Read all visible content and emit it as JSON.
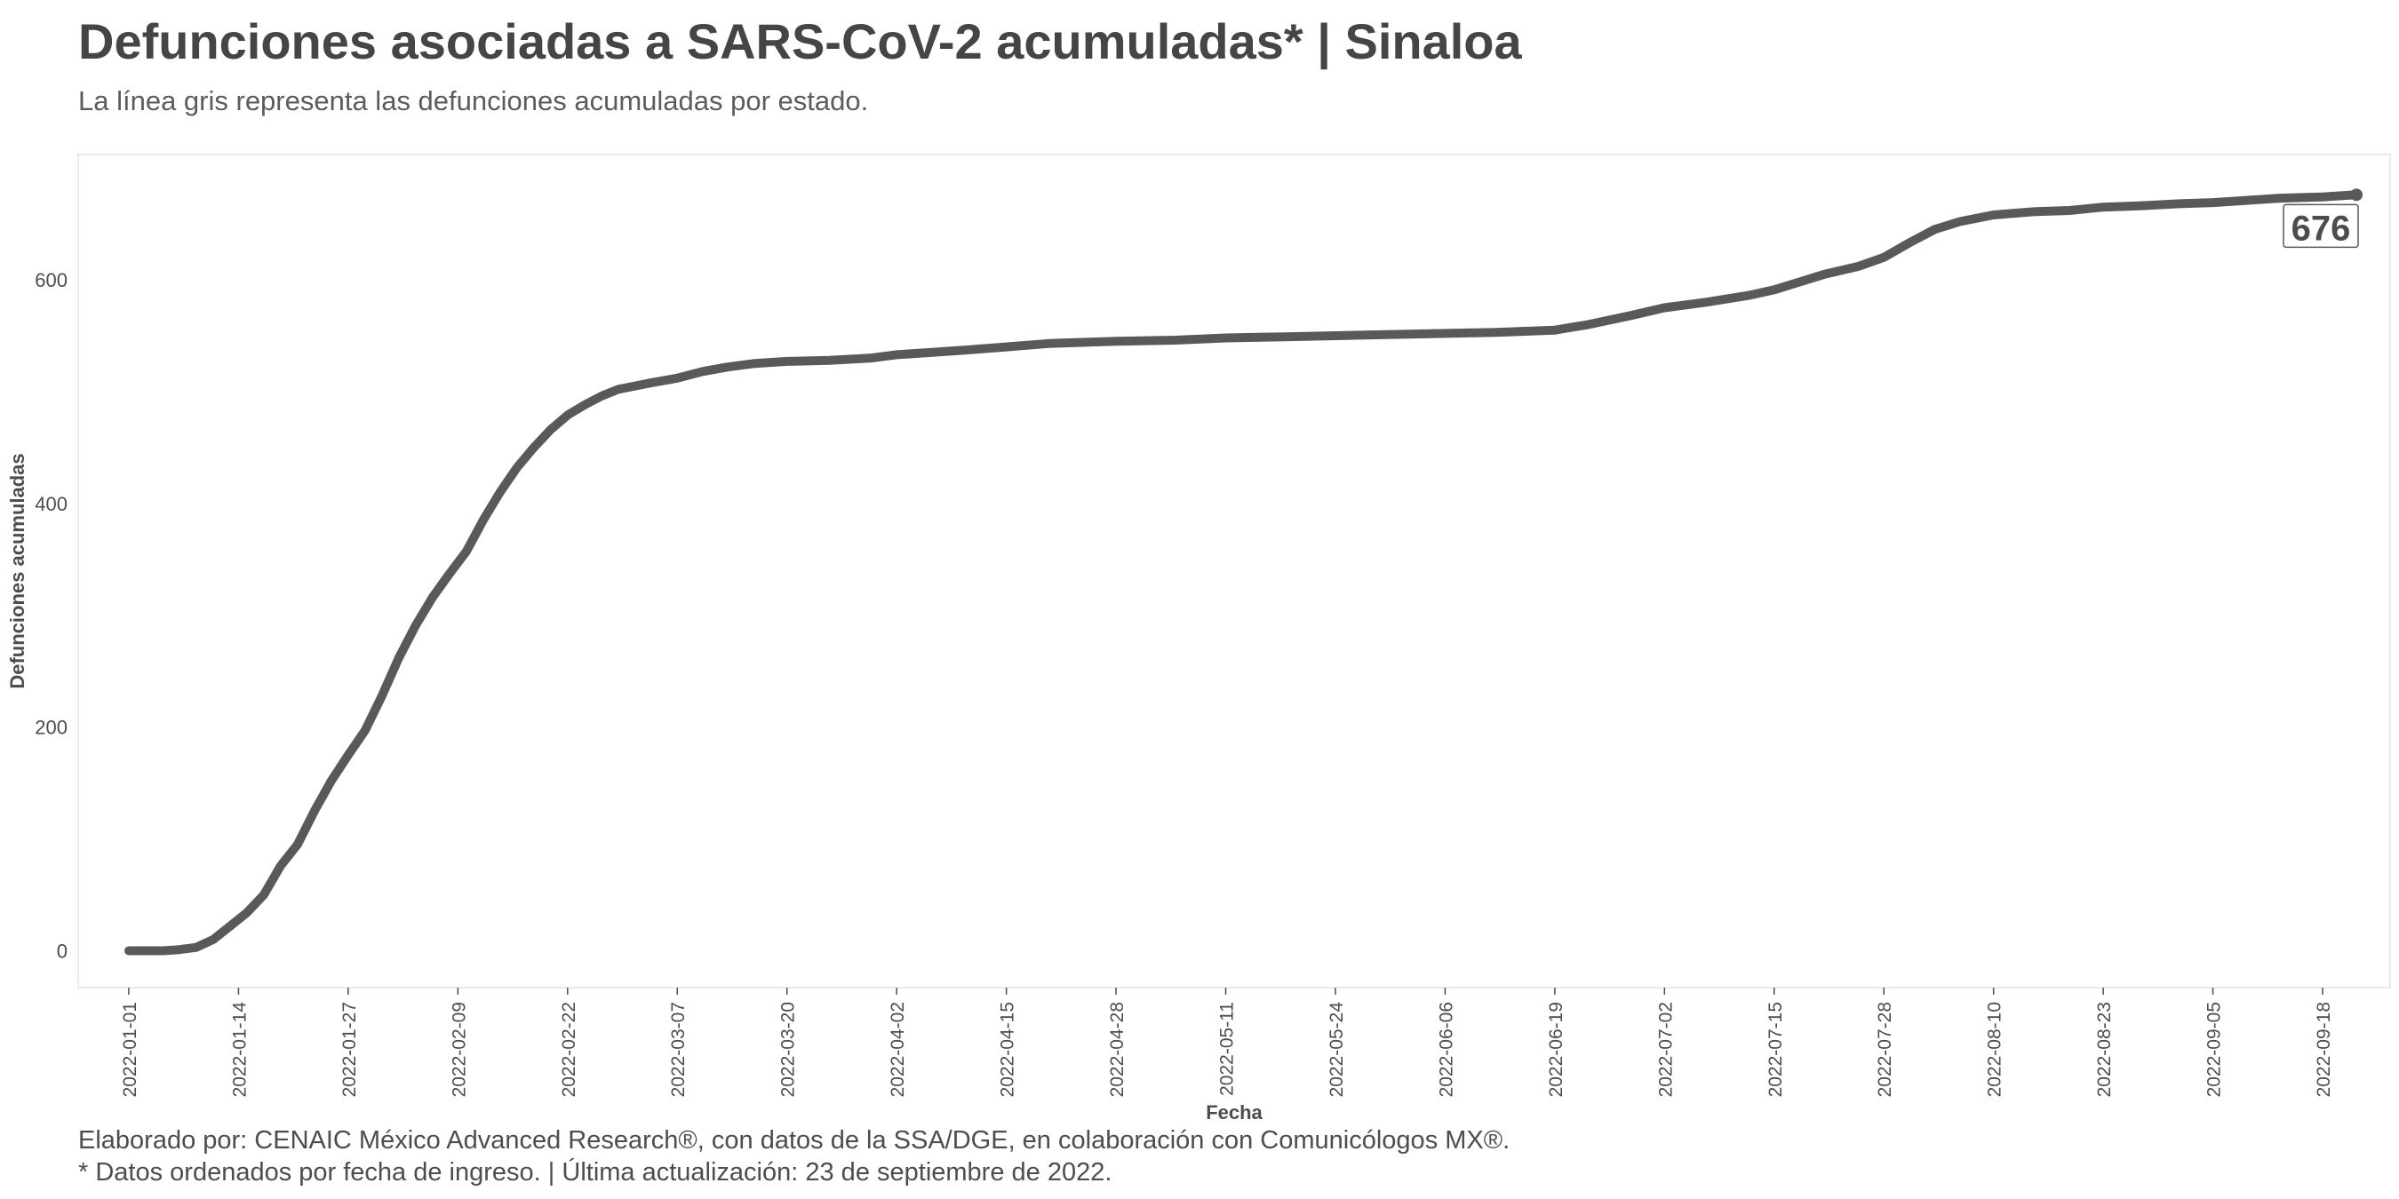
{
  "title": "Defunciones asociadas a SARS-CoV-2 acumuladas* | Sinaloa",
  "subtitle": "La línea gris representa las defunciones acumuladas por estado.",
  "caption_line1": "Elaborado por: CENAIC México Advanced Research®, con datos de la SSA/DGE, en colaboración con Comunicólogos MX®.",
  "caption_line2": "* Datos ordenados por fecha de ingreso. | Última actualización: 23 de septiembre de 2022.",
  "colors": {
    "line": "#595959",
    "frame": "#e3e3e3",
    "text": "#4d4d4d"
  },
  "chart_data": {
    "type": "line",
    "xlabel": "Fecha",
    "ylabel": "Defunciones acumuladas",
    "x_tick_labels": [
      "2022-01-01",
      "2022-01-14",
      "2022-01-27",
      "2022-02-09",
      "2022-02-22",
      "2022-03-07",
      "2022-03-20",
      "2022-04-02",
      "2022-04-15",
      "2022-04-28",
      "2022-05-11",
      "2022-05-24",
      "2022-06-06",
      "2022-06-19",
      "2022-07-02",
      "2022-07-15",
      "2022-07-28",
      "2022-08-10",
      "2022-08-23",
      "2022-09-05",
      "2022-09-18"
    ],
    "y_ticks": [
      0,
      200,
      400,
      600
    ],
    "xlim": [
      "2021-12-26",
      "2022-09-26"
    ],
    "ylim": [
      -33,
      712
    ],
    "grid": false,
    "end_label": "676",
    "series": [
      {
        "x": [
          "2022-01-01",
          "2022-01-05",
          "2022-01-07",
          "2022-01-09",
          "2022-01-11",
          "2022-01-13",
          "2022-01-15",
          "2022-01-17",
          "2022-01-19",
          "2022-01-21",
          "2022-01-23",
          "2022-01-25",
          "2022-01-27",
          "2022-01-29",
          "2022-01-31",
          "2022-02-02",
          "2022-02-04",
          "2022-02-06",
          "2022-02-08",
          "2022-02-10",
          "2022-02-12",
          "2022-02-14",
          "2022-02-16",
          "2022-02-18",
          "2022-02-20",
          "2022-02-22",
          "2022-02-24",
          "2022-02-26",
          "2022-02-28",
          "2022-03-02",
          "2022-03-04",
          "2022-03-07",
          "2022-03-10",
          "2022-03-13",
          "2022-03-16",
          "2022-03-20",
          "2022-03-25",
          "2022-03-30",
          "2022-04-02",
          "2022-04-06",
          "2022-04-10",
          "2022-04-15",
          "2022-04-20",
          "2022-04-28",
          "2022-05-05",
          "2022-05-11",
          "2022-05-18",
          "2022-05-24",
          "2022-05-30",
          "2022-06-06",
          "2022-06-12",
          "2022-06-19",
          "2022-06-23",
          "2022-06-28",
          "2022-07-02",
          "2022-07-07",
          "2022-07-12",
          "2022-07-15",
          "2022-07-18",
          "2022-07-21",
          "2022-07-25",
          "2022-07-28",
          "2022-07-31",
          "2022-08-03",
          "2022-08-06",
          "2022-08-10",
          "2022-08-15",
          "2022-08-19",
          "2022-08-23",
          "2022-08-27",
          "2022-09-01",
          "2022-09-05",
          "2022-09-09",
          "2022-09-13",
          "2022-09-18",
          "2022-09-22"
        ],
        "y": [
          0,
          0,
          1,
          3,
          10,
          22,
          34,
          50,
          76,
          95,
          125,
          152,
          175,
          197,
          228,
          262,
          291,
          316,
          337,
          357,
          385,
          410,
          432,
          450,
          466,
          479,
          488,
          496,
          502,
          505,
          508,
          512,
          518,
          522,
          525,
          527,
          528,
          530,
          533,
          535,
          537,
          540,
          543,
          545,
          546,
          548,
          549,
          550,
          551,
          552,
          553,
          555,
          560,
          568,
          575,
          580,
          586,
          591,
          598,
          605,
          612,
          620,
          633,
          645,
          652,
          658,
          661,
          662,
          665,
          666,
          668,
          669,
          671,
          673,
          674,
          676
        ]
      }
    ]
  }
}
